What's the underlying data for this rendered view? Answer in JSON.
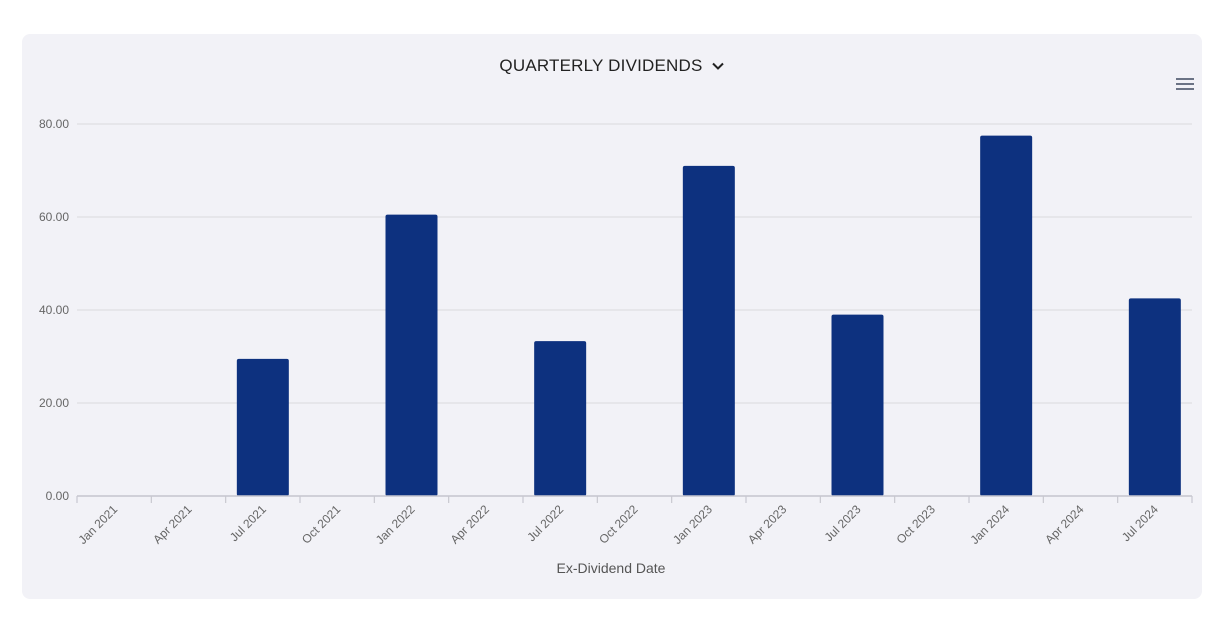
{
  "header": {
    "title": "QUARTERLY DIVIDENDS"
  },
  "icons": {
    "dropdown": "chevron-down-icon",
    "menu": "hamburger-menu-icon"
  },
  "colors": {
    "bar": "#0d317f",
    "grid": "#e1e1e6",
    "background": "#f2f2f7"
  },
  "chart_data": {
    "type": "bar",
    "title": "QUARTERLY DIVIDENDS",
    "xlabel": "Ex-Dividend Date",
    "ylabel": "",
    "ylim": [
      0,
      80
    ],
    "yticks": [
      "0.00",
      "20.00",
      "40.00",
      "60.00",
      "80.00"
    ],
    "ytick_values": [
      0,
      20,
      40,
      60,
      80
    ],
    "categories": [
      "Jan 2021",
      "Apr 2021",
      "Jul 2021",
      "Oct 2021",
      "Jan 2022",
      "Apr 2022",
      "Jul 2022",
      "Oct 2022",
      "Jan 2023",
      "Apr 2023",
      "Jul 2023",
      "Oct 2023",
      "Jan 2024",
      "Apr 2024",
      "Jul 2024"
    ],
    "values": [
      0,
      0,
      29.5,
      0,
      60.5,
      0,
      33.3,
      0,
      71,
      0,
      39,
      0,
      77.5,
      0,
      42.5
    ],
    "grid": true,
    "legend": "none"
  }
}
